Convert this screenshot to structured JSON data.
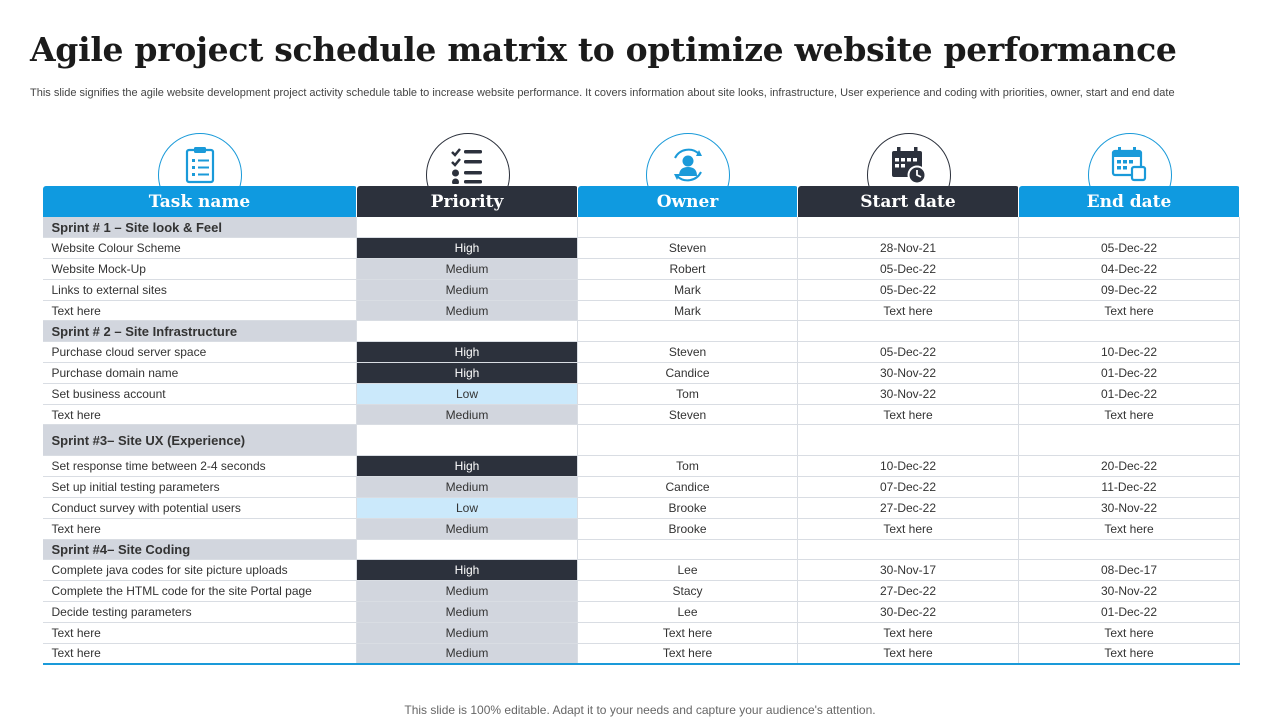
{
  "title": "Agile project schedule matrix to optimize website performance",
  "subtitle": "This slide signifies the agile website development project activity schedule table to increase website performance. It covers information about site looks, infrastructure, User experience and coding with priorities, owner, start and end date",
  "icons": [
    {
      "name": "checklist-icon",
      "style": "blue"
    },
    {
      "name": "priority-list-icon",
      "style": "dark"
    },
    {
      "name": "owner-user-icon",
      "style": "blue"
    },
    {
      "name": "calendar-clock-icon",
      "style": "dark"
    },
    {
      "name": "calendar-icon",
      "style": "blue"
    }
  ],
  "colors": {
    "accent_blue": "#0f9ae0",
    "dark": "#2c313c",
    "medium_grey": "#d2d6de",
    "low_blue": "#cbe9fb"
  },
  "headers": [
    "Task name",
    "Priority",
    "Owner",
    "Start date",
    "End date"
  ],
  "sprints": [
    {
      "label": "Sprint # 1 – Site look & Feel",
      "tall": false,
      "tasks": [
        {
          "task": "Website Colour Scheme",
          "priority": "High",
          "owner": "Steven",
          "start": "28-Nov-21",
          "end": "05-Dec-22"
        },
        {
          "task": "Website Mock-Up",
          "priority": "Medium",
          "owner": "Robert",
          "start": "05-Dec-22",
          "end": "04-Dec-22"
        },
        {
          "task": "Links to external sites",
          "priority": "Medium",
          "owner": "Mark",
          "start": "05-Dec-22",
          "end": "09-Dec-22"
        },
        {
          "task": "Text here",
          "priority": "Medium",
          "owner": "Mark",
          "start": "Text here",
          "end": "Text here"
        }
      ]
    },
    {
      "label": "Sprint # 2 – Site Infrastructure",
      "tall": false,
      "tasks": [
        {
          "task": "Purchase cloud server space",
          "priority": "High",
          "owner": "Steven",
          "start": "05-Dec-22",
          "end": "10-Dec-22"
        },
        {
          "task": "Purchase domain name",
          "priority": "High",
          "owner": "Candice",
          "start": "30-Nov-22",
          "end": "01-Dec-22"
        },
        {
          "task": "Set business account",
          "priority": "Low",
          "owner": "Tom",
          "start": "30-Nov-22",
          "end": "01-Dec-22"
        },
        {
          "task": "Text here",
          "priority": "Medium",
          "owner": "Steven",
          "start": "Text here",
          "end": "Text here"
        }
      ]
    },
    {
      "label": "Sprint #3– Site UX (Experience)",
      "tall": true,
      "tasks": [
        {
          "task": "Set response time between 2-4 seconds",
          "priority": "High",
          "owner": "Tom",
          "start": "10-Dec-22",
          "end": "20-Dec-22"
        },
        {
          "task": "Set up initial testing parameters",
          "priority": "Medium",
          "owner": "Candice",
          "start": "07-Dec-22",
          "end": "11-Dec-22"
        },
        {
          "task": "Conduct survey with potential users",
          "priority": "Low",
          "owner": "Brooke",
          "start": "27-Dec-22",
          "end": "30-Nov-22"
        },
        {
          "task": "Text here",
          "priority": "Medium",
          "owner": "Brooke",
          "start": "Text here",
          "end": "Text here"
        }
      ]
    },
    {
      "label": "Sprint #4– Site Coding",
      "tall": false,
      "tasks": [
        {
          "task": "Complete java codes for site picture uploads",
          "priority": "High",
          "owner": "Lee",
          "start": "30-Nov-17",
          "end": "08-Dec-17"
        },
        {
          "task": "Complete the HTML code for the site Portal page",
          "priority": "Medium",
          "owner": "Stacy",
          "start": "27-Dec-22",
          "end": "30-Nov-22"
        },
        {
          "task": "Decide testing parameters",
          "priority": "Medium",
          "owner": "Lee",
          "start": "30-Dec-22",
          "end": "01-Dec-22"
        },
        {
          "task": "Text here",
          "priority": "Medium",
          "owner": "Text here",
          "start": "Text here",
          "end": "Text here"
        },
        {
          "task": "Text here",
          "priority": "Medium",
          "owner": "Text here",
          "start": "Text here",
          "end": "Text here"
        }
      ]
    }
  ],
  "footer": "This slide is 100% editable. Adapt it to your needs and capture your audience's attention."
}
